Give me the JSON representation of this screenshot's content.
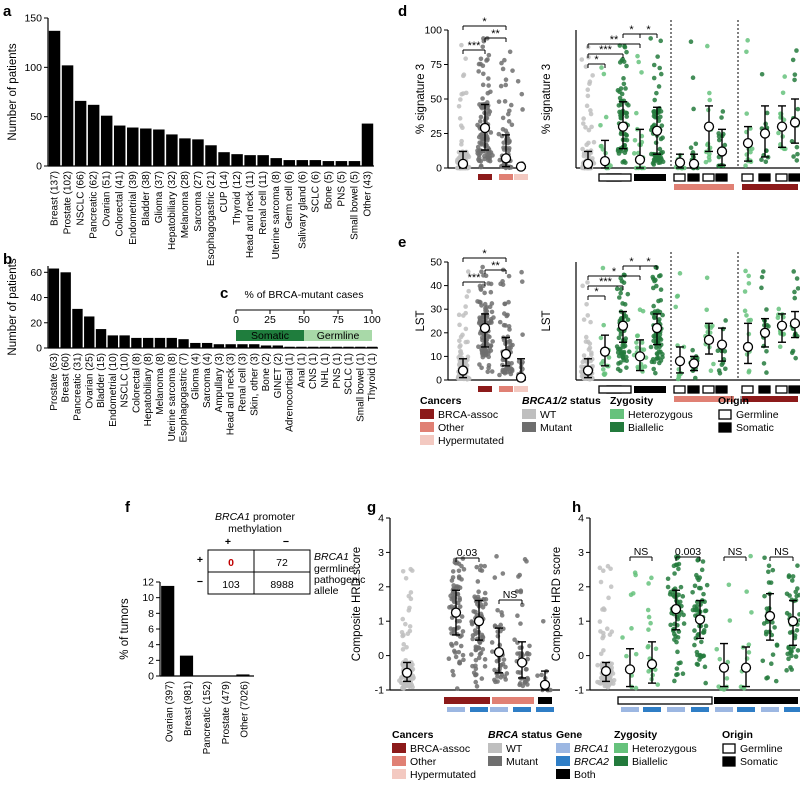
{
  "colors": {
    "black": "#000000",
    "wt": "#bfbfbf",
    "mutant": "#6e6e6e",
    "brca_assoc": "#8c1a1a",
    "other_cancer": "#e08074",
    "hypermutated": "#f3c9c1",
    "heterozygous": "#66c27c",
    "biallelic": "#237a3c",
    "brca1": "#9cb7e2",
    "brca2": "#2f7ec6",
    "both": "#000000",
    "somatic_bar": "#1f7d3d",
    "germline_bar": "#a8d9a8",
    "methyl_zero": "#c00000"
  },
  "panel_labels": [
    "a",
    "b",
    "c",
    "d",
    "e",
    "f",
    "g",
    "h"
  ],
  "charts": {
    "a": {
      "type": "bar",
      "ylabel": "Number of patients",
      "ylim": [
        0,
        150
      ],
      "yticks": [
        "0",
        "50",
        "100",
        "150"
      ],
      "categories": [
        "Breast (137)",
        "Prostate (102)",
        "NSCLC (66)",
        "Pancreatic (62)",
        "Ovarian (51)",
        "Colorectal (41)",
        "Endometrial (39)",
        "Bladder (38)",
        "Glioma (37)",
        "Hepatobiliary (32)",
        "Melanoma (28)",
        "Sarcoma (27)",
        "Esophagogastric (21)",
        "CUP (14)",
        "Thyroid (12)",
        "Head and neck (11)",
        "Renal cell (11)",
        "Uterine sarcoma (8)",
        "Germ cell (6)",
        "Salivary gland (6)",
        "SCLC (6)",
        "Bone (5)",
        "PNS (5)",
        "Small bowel (5)",
        "Other (43)"
      ],
      "values": [
        137,
        102,
        66,
        62,
        51,
        41,
        39,
        38,
        37,
        32,
        28,
        27,
        21,
        14,
        12,
        11,
        11,
        8,
        6,
        6,
        6,
        5,
        5,
        5,
        43
      ]
    },
    "b": {
      "type": "bar",
      "ylabel": "Number of patients",
      "ylim": [
        0,
        65
      ],
      "yticks": [
        "0",
        "20",
        "40",
        "60"
      ],
      "categories": [
        "Prostate (63)",
        "Breast (60)",
        "Pancreatic (31)",
        "Ovarian (25)",
        "Bladder (15)",
        "Endometrial (10)",
        "NSCLC (10)",
        "Colorectal (8)",
        "Hepatobiliary (8)",
        "Melanoma (8)",
        "Uterine sarcoma (8)",
        "Esophagogastric (7)",
        "Glioma (4)",
        "Sarcoma (4)",
        "Ampullary (3)",
        "Head and neck (3)",
        "Renal cell (3)",
        "Skin, other (3)",
        "Bone (2)",
        "GINET (2)",
        "Adrenocortical (1)",
        "Anal (1)",
        "CNS (1)",
        "NHL (1)",
        "PNS (1)",
        "SCLC (1)",
        "Small bowel (1)",
        "Thyroid (1)"
      ],
      "values": [
        63,
        60,
        31,
        25,
        15,
        10,
        10,
        8,
        8,
        8,
        8,
        7,
        4,
        4,
        3,
        3,
        3,
        3,
        2,
        2,
        1,
        1,
        1,
        1,
        1,
        1,
        1,
        1
      ]
    },
    "c": {
      "type": "bar",
      "title": "% of BRCA-mutant cases",
      "xticks": [
        "0",
        "25",
        "50",
        "75",
        "100"
      ],
      "series": [
        {
          "name": "Somatic",
          "value": 50
        },
        {
          "name": "Germline",
          "value": 50
        }
      ]
    },
    "d_left": {
      "type": "scatter",
      "ylabel": "% signature 3",
      "ylim": [
        0,
        100
      ],
      "yticks": [
        "0",
        "25",
        "50",
        "75",
        "100"
      ],
      "groups": [
        {
          "status": "WT",
          "cancer": "",
          "median": 3,
          "q1": 0,
          "q3": 12
        },
        {
          "status": "Mutant",
          "cancer": "BRCA-assoc",
          "median": 29,
          "q1": 13,
          "q3": 46
        },
        {
          "status": "Mutant",
          "cancer": "Other",
          "median": 7,
          "q1": 1,
          "q3": 24
        },
        {
          "status": "Mutant",
          "cancer": "Hypermutated",
          "median": 1,
          "q1": 0,
          "q3": 3
        }
      ],
      "significance": [
        "*",
        "**",
        "***"
      ]
    },
    "d_right": {
      "type": "scatter",
      "ylabel": "% signature 3",
      "ylim": [
        0,
        100
      ],
      "sections": [
        {
          "cancer": "All",
          "groups": [
            {
              "label": "WT",
              "median": 3,
              "q1": 0,
              "q3": 12
            },
            {
              "label": "Germline heterozygous",
              "median": 5,
              "q1": 0,
              "q3": 20
            },
            {
              "label": "Germline biallelic",
              "median": 30,
              "q1": 14,
              "q3": 48
            },
            {
              "label": "Somatic heterozygous",
              "median": 6,
              "q1": 0,
              "q3": 28
            },
            {
              "label": "Somatic biallelic",
              "median": 27,
              "q1": 10,
              "q3": 44
            }
          ]
        },
        {
          "cancer": "Other",
          "groups": [
            {
              "label": "Germline heterozygous",
              "median": 4,
              "q1": 0,
              "q3": 10
            },
            {
              "label": "Germline biallelic",
              "median": 3,
              "q1": 0,
              "q3": 10
            },
            {
              "label": "Somatic heterozygous",
              "median": 30,
              "q1": 12,
              "q3": 45
            },
            {
              "label": "Somatic biallelic",
              "median": 12,
              "q1": 2,
              "q3": 28
            }
          ]
        },
        {
          "cancer": "BRCA-assoc",
          "groups": [
            {
              "label": "Germline heterozygous",
              "median": 18,
              "q1": 5,
              "q3": 30
            },
            {
              "label": "Germline biallelic",
              "median": 25,
              "q1": 8,
              "q3": 45
            },
            {
              "label": "Somatic heterozygous",
              "median": 30,
              "q1": 15,
              "q3": 45
            },
            {
              "label": "Somatic biallelic",
              "median": 33,
              "q1": 18,
              "q3": 50
            }
          ]
        }
      ],
      "significance": [
        "*",
        "*",
        "**",
        "***",
        "*"
      ]
    },
    "e_left": {
      "type": "scatter",
      "ylabel": "LST",
      "ylim": [
        0,
        50
      ],
      "yticks": [
        "0",
        "10",
        "20",
        "30",
        "40",
        "50"
      ],
      "groups": [
        {
          "status": "WT",
          "median": 4,
          "q1": 1,
          "q3": 9
        },
        {
          "status": "Mutant",
          "cancer": "BRCA-assoc",
          "median": 22,
          "q1": 14,
          "q3": 28
        },
        {
          "status": "Mutant",
          "cancer": "Other",
          "median": 11,
          "q1": 6,
          "q3": 18
        },
        {
          "status": "Mutant",
          "cancer": "Hypermutated",
          "median": 1,
          "q1": 0,
          "q3": 9
        }
      ],
      "significance": [
        "*",
        "**",
        "***"
      ]
    },
    "e_right": {
      "type": "scatter",
      "ylabel": "LST",
      "ylim": [
        0,
        50
      ],
      "sections": [
        {
          "cancer": "All",
          "groups": [
            {
              "label": "WT",
              "median": 4,
              "q1": 1,
              "q3": 9
            },
            {
              "label": "Germline heterozygous",
              "median": 12,
              "q1": 6,
              "q3": 19
            },
            {
              "label": "Germline biallelic",
              "median": 23,
              "q1": 16,
              "q3": 29
            },
            {
              "label": "Somatic heterozygous",
              "median": 10,
              "q1": 4,
              "q3": 17
            },
            {
              "label": "Somatic biallelic",
              "median": 22,
              "q1": 15,
              "q3": 28
            }
          ]
        },
        {
          "cancer": "Other",
          "groups": [
            {
              "label": "Germline heterozygous",
              "median": 8,
              "q1": 3,
              "q3": 14
            },
            {
              "label": "Germline biallelic",
              "median": 7,
              "q1": 4,
              "q3": 10
            },
            {
              "label": "Somatic heterozygous",
              "median": 17,
              "q1": 11,
              "q3": 24
            },
            {
              "label": "Somatic biallelic",
              "median": 15,
              "q1": 8,
              "q3": 22
            }
          ]
        },
        {
          "cancer": "BRCA-assoc",
          "groups": [
            {
              "label": "Germline heterozygous",
              "median": 14,
              "q1": 7,
              "q3": 24
            },
            {
              "label": "Germline biallelic",
              "median": 20,
              "q1": 14,
              "q3": 26
            },
            {
              "label": "Somatic heterozygous",
              "median": 23,
              "q1": 16,
              "q3": 28
            },
            {
              "label": "Somatic biallelic",
              "median": 24,
              "q1": 18,
              "q3": 29
            }
          ]
        }
      ],
      "significance": [
        "*",
        "*",
        "*",
        "***",
        "*"
      ]
    },
    "f": {
      "type": "bar",
      "ylabel": "% of tumors",
      "ylim": [
        0,
        12
      ],
      "yticks": [
        "0",
        "2",
        "4",
        "6",
        "8",
        "10",
        "12"
      ],
      "categories": [
        "Ovarian (397)",
        "Breast (981)",
        "Pancreatic (152)",
        "Prostate (479)",
        "Other (7026)"
      ],
      "values": [
        11.5,
        2.6,
        0,
        0,
        0.2
      ],
      "table": {
        "title_italic": "BRCA1",
        "title_rest": " promoter",
        "title_line2": "methylation",
        "col_headers": [
          "+",
          "−"
        ],
        "row_headers": [
          "+",
          "−"
        ],
        "cells": [
          [
            "0",
            "72"
          ],
          [
            "103",
            "8988"
          ]
        ],
        "side_italic": "BRCA1",
        "side_lines": [
          "germline",
          "pathogenic",
          "allele"
        ]
      }
    },
    "g": {
      "type": "scatter",
      "ylabel": "Composite HRD score",
      "ylim": [
        -1,
        4
      ],
      "yticks": [
        "-1",
        "0",
        "1",
        "2",
        "3",
        "4"
      ],
      "groups": [
        {
          "label": "WT",
          "median": -0.5,
          "q1": -0.75,
          "q3": -0.2
        },
        {
          "label": "BRCA-assoc BRCA1",
          "median": 1.25,
          "q1": 0.6,
          "q3": 1.9
        },
        {
          "label": "BRCA-assoc BRCA2",
          "median": 1.0,
          "q1": 0.45,
          "q3": 1.6
        },
        {
          "label": "Other BRCA1",
          "median": 0.1,
          "q1": -0.5,
          "q3": 0.8
        },
        {
          "label": "Other BRCA2",
          "median": -0.2,
          "q1": -0.65,
          "q3": 0.4
        },
        {
          "label": "Hypermutated Both",
          "median": -0.85,
          "q1": -1.0,
          "q3": -0.45
        }
      ],
      "annotations": [
        "0.03",
        "NS"
      ]
    },
    "h": {
      "type": "scatter",
      "ylabel": "Composite HRD score",
      "ylim": [
        -1,
        4
      ],
      "yticks": [
        "-1",
        "0",
        "1",
        "2",
        "3",
        "4"
      ],
      "groups": [
        {
          "label": "WT",
          "median": -0.45,
          "q1": -0.75,
          "q3": -0.2
        },
        {
          "label": "Germline het BRCA1",
          "median": -0.4,
          "q1": -0.9,
          "q3": 0.2
        },
        {
          "label": "Germline het BRCA2",
          "median": -0.25,
          "q1": -0.8,
          "q3": 0.4
        },
        {
          "label": "Germline bi BRCA1",
          "median": 1.35,
          "q1": 0.75,
          "q3": 1.9
        },
        {
          "label": "Germline bi BRCA2",
          "median": 1.05,
          "q1": 0.5,
          "q3": 1.6
        },
        {
          "label": "Somatic het BRCA1",
          "median": -0.35,
          "q1": -0.9,
          "q3": 0.35
        },
        {
          "label": "Somatic het BRCA2",
          "median": -0.35,
          "q1": -0.9,
          "q3": 0.25
        },
        {
          "label": "Somatic bi BRCA1",
          "median": 1.15,
          "q1": 0.45,
          "q3": 1.8
        },
        {
          "label": "Somatic bi BRCA2",
          "median": 1.0,
          "q1": 0.3,
          "q3": 1.6
        }
      ],
      "annotations": [
        "NS",
        "0.003",
        "NS",
        "NS"
      ]
    }
  },
  "legend_de": {
    "cancers": {
      "title": "Cancers",
      "items": [
        "BRCA-assoc",
        "Other",
        "Hypermutated"
      ]
    },
    "status": {
      "title_italic": "BRCA1/2",
      "title_rest": " status",
      "items": [
        "WT",
        "Mutant"
      ]
    },
    "zygosity": {
      "title": "Zygosity",
      "items": [
        "Heterozygous",
        "Biallelic"
      ]
    },
    "origin": {
      "title": "Origin",
      "items": [
        "Germline",
        "Somatic"
      ]
    }
  },
  "legend_gh": {
    "cancers": {
      "title": "Cancers",
      "items": [
        "BRCA-assoc",
        "Other",
        "Hypermutated"
      ]
    },
    "status": {
      "title_italic": "BRCA",
      "title_rest": " status",
      "items": [
        "WT",
        "Mutant"
      ]
    },
    "gene": {
      "title": "Gene",
      "items": [
        "BRCA1",
        "BRCA2",
        "Both"
      ]
    },
    "zygosity": {
      "title": "Zygosity",
      "items": [
        "Heterozygous",
        "Biallelic"
      ]
    },
    "origin": {
      "title": "Origin",
      "items": [
        "Germline",
        "Somatic"
      ]
    }
  }
}
